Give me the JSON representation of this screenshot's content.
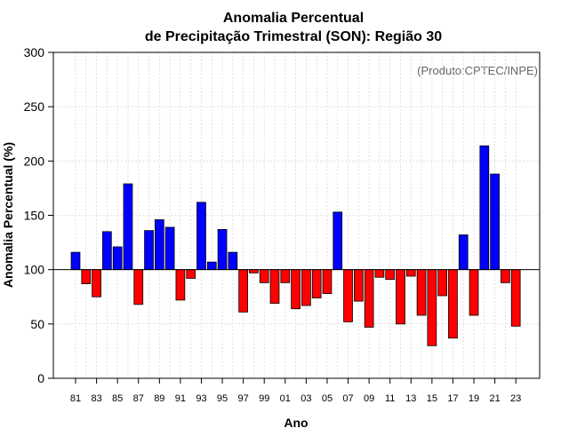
{
  "chart_data": {
    "type": "bar",
    "title_line1": "Anomalia Percentual",
    "title_line2": "de Precipitação Trimestral (SON): Região 30",
    "xlabel": "Ano",
    "ylabel": "Anomalia Percentual (%)",
    "credit": "(Produto:CPTEC/INPE)",
    "ylim": [
      0,
      300
    ],
    "yticks": [
      0,
      50,
      100,
      150,
      200,
      250,
      300
    ],
    "baseline": 100,
    "grid": true,
    "colors": {
      "above": "#0000ff",
      "below": "#ff0000",
      "edge": "#000000",
      "grid": "#d9d9d9"
    },
    "categories": [
      "81",
      "82",
      "83",
      "84",
      "85",
      "86",
      "87",
      "88",
      "89",
      "90",
      "91",
      "92",
      "93",
      "94",
      "95",
      "96",
      "97",
      "98",
      "99",
      "00",
      "01",
      "02",
      "03",
      "04",
      "05",
      "06",
      "07",
      "08",
      "09",
      "10",
      "11",
      "12",
      "13",
      "14",
      "15",
      "16",
      "17",
      "18",
      "19",
      "20",
      "21",
      "22",
      "23"
    ],
    "xtick_labels": [
      "81",
      "83",
      "85",
      "87",
      "89",
      "91",
      "93",
      "95",
      "97",
      "99",
      "01",
      "03",
      "05",
      "07",
      "09",
      "11",
      "13",
      "15",
      "17",
      "19",
      "21",
      "23"
    ],
    "values": [
      116,
      87,
      75,
      135,
      121,
      179,
      68,
      136,
      146,
      139,
      72,
      92,
      162,
      107,
      137,
      116,
      61,
      97,
      88,
      69,
      88,
      64,
      67,
      74,
      78,
      153,
      52,
      71,
      47,
      93,
      91,
      50,
      94,
      58,
      30,
      76,
      37,
      132,
      58,
      214,
      188,
      88,
      48
    ]
  }
}
